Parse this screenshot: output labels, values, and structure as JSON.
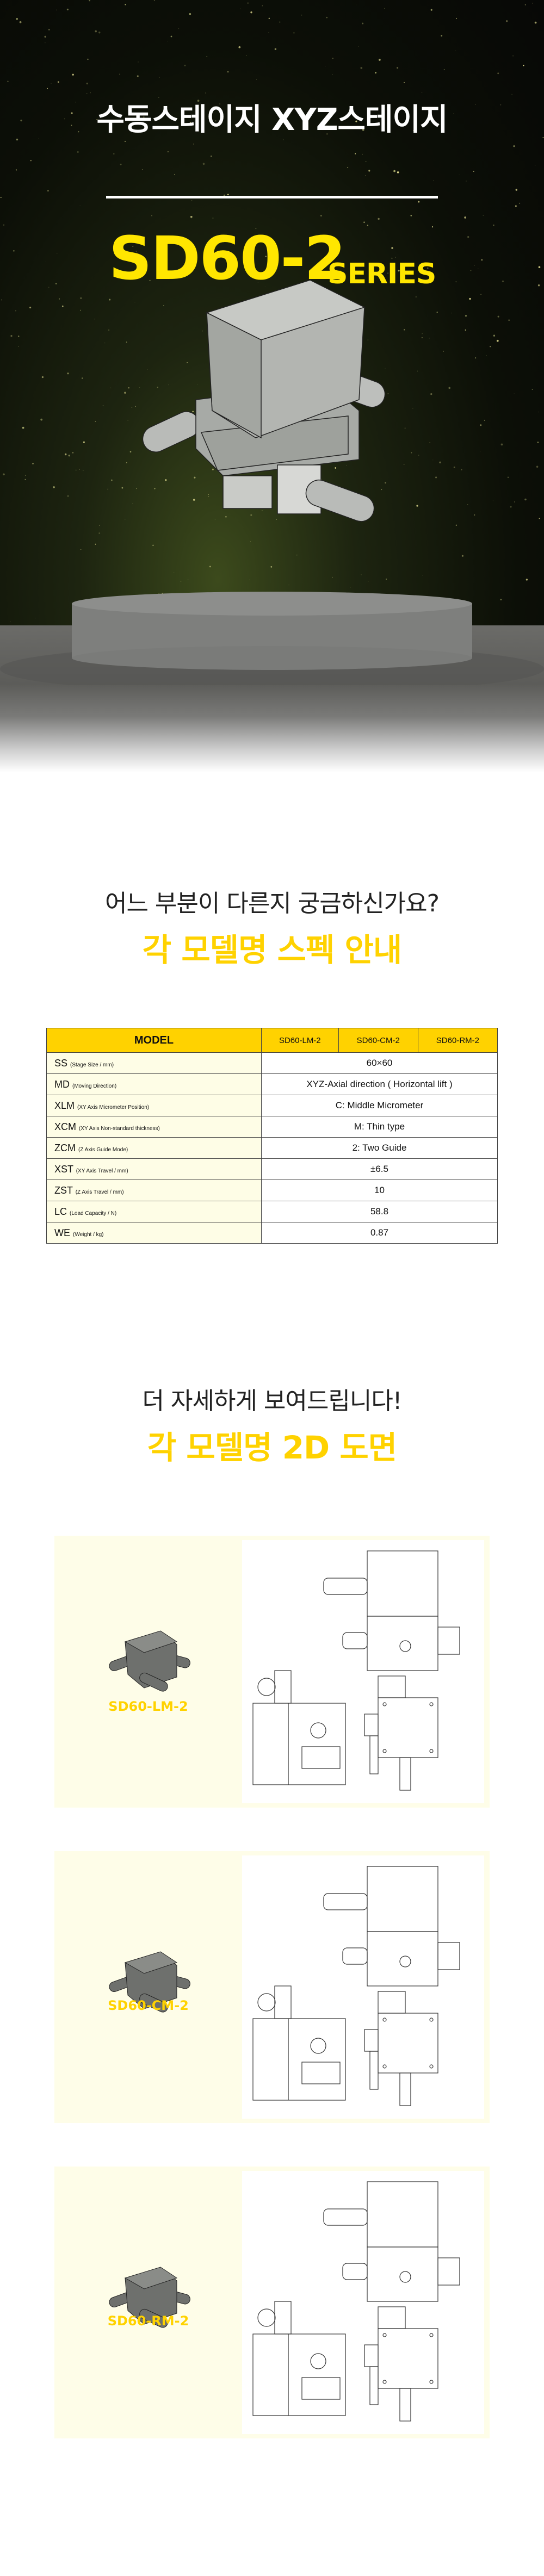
{
  "hero": {
    "title": "수동스테이지 XYZ스테이지",
    "model": "SD60-2",
    "series": "SERIES",
    "accent_color": "#ffe600"
  },
  "spec_section": {
    "question": "어느 부분이 다른지 궁금하신가요?",
    "heading": "각 모델명 스펙 안내",
    "accent_color": "#ffd200"
  },
  "spec_table": {
    "header": {
      "model": "MODEL",
      "models": [
        "SD60-LM-2",
        "SD60-CM-2",
        "SD60-RM-2"
      ]
    },
    "rows": [
      {
        "code": "SS",
        "desc": "(Stage Size / mm)",
        "value": "60×60"
      },
      {
        "code": "MD",
        "desc": "(Moving Direction)",
        "value": "XYZ-Axial direction ( Horizontal lift )"
      },
      {
        "code": "XLM",
        "desc": "(XY Axis Micrometer Position)",
        "value": "C: Middle Micrometer"
      },
      {
        "code": "XCM",
        "desc": "(XY Axis Non-standard thickness)",
        "value": "M: Thin type"
      },
      {
        "code": "ZCM",
        "desc": "(Z Axis Guide Mode)",
        "value": "2: Two Guide"
      },
      {
        "code": "XST",
        "desc": "(XY Axis Travel / mm)",
        "value": "±6.5"
      },
      {
        "code": "ZST",
        "desc": "(Z Axis Travel / mm)",
        "value": "10"
      },
      {
        "code": "LC",
        "desc": "(Load Capacity / N)",
        "value": "58.8"
      },
      {
        "code": "WE",
        "desc": "(Weight / kg)",
        "value": "0.87"
      }
    ]
  },
  "drawing_section": {
    "question": "더 자세하게 보여드립니다!",
    "heading": "각 모델명 2D 도면"
  },
  "cards": [
    {
      "label": "SD60-LM-2"
    },
    {
      "label": "SD60-CM-2"
    },
    {
      "label": "SD60-RM-2"
    }
  ]
}
